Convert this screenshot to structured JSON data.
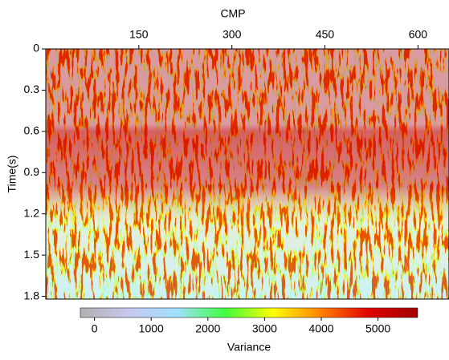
{
  "chart_data": {
    "type": "image",
    "x_label": "CMP",
    "y_label": "Time(s)",
    "xlim": [
      0,
      650
    ],
    "xticks": [
      150,
      300,
      450,
      600
    ],
    "ylim": [
      0,
      1.82
    ],
    "yticks": [
      0,
      0.3,
      0.6,
      0.9,
      1.2,
      1.5,
      1.8
    ],
    "colorbar": {
      "label": "Variance",
      "lim": [
        -250,
        5700
      ],
      "ticks": [
        0,
        1000,
        2000,
        3000,
        4000,
        5000
      ],
      "colors": [
        "#b0b0b0",
        "#c8c8f0",
        "#a0e0ff",
        "#40ff40",
        "#ffff00",
        "#ff8000",
        "#e00000",
        "#a00000"
      ]
    }
  }
}
